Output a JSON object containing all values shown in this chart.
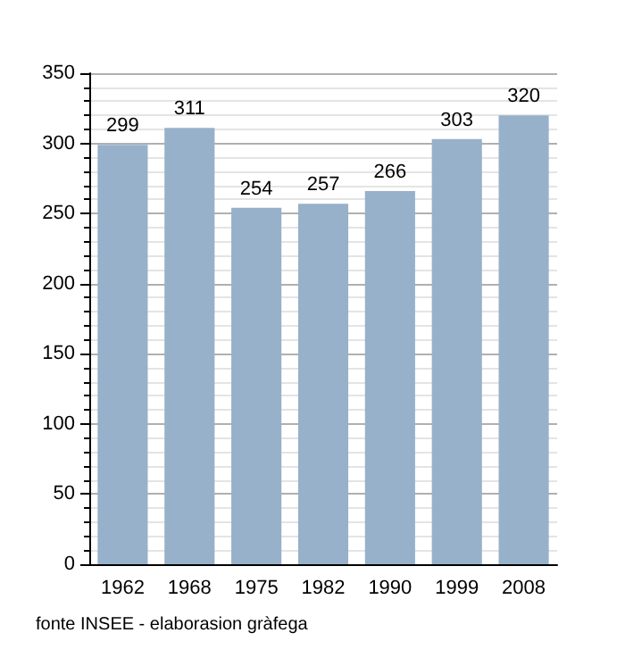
{
  "chart_data": {
    "type": "bar",
    "categories": [
      "1962",
      "1968",
      "1975",
      "1982",
      "1990",
      "1999",
      "2008"
    ],
    "values": [
      299,
      311,
      254,
      257,
      266,
      303,
      320
    ],
    "color": "#97b1cb",
    "ylim": [
      0,
      350
    ],
    "yticks": [
      0,
      50,
      100,
      150,
      200,
      250,
      300,
      350
    ],
    "grid": "y",
    "data_labels": true,
    "annotations": [
      "fonte INSEE - elaborasion gràfega"
    ]
  }
}
